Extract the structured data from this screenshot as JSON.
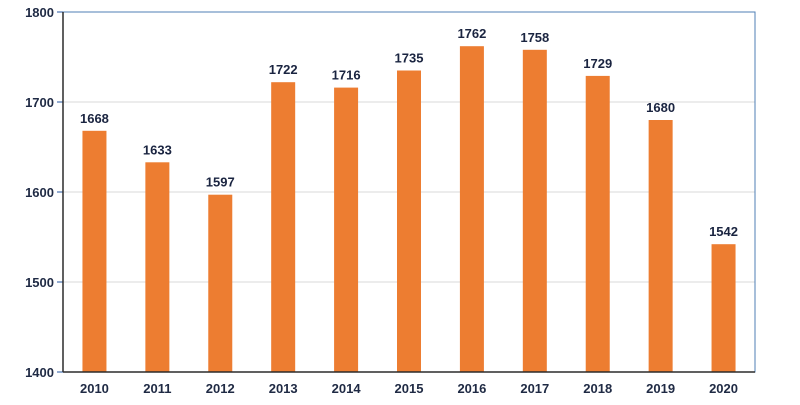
{
  "chart_data": {
    "type": "bar",
    "categories": [
      "2010",
      "2011",
      "2012",
      "2013",
      "2014",
      "2015",
      "2016",
      "2017",
      "2018",
      "2019",
      "2020"
    ],
    "series": [
      {
        "values": [
          1668,
          1633,
          1597,
          1722,
          1716,
          1735,
          1762,
          1758,
          1729,
          1680,
          1542
        ],
        "color": "#ed7d31"
      }
    ],
    "data_labels": [
      "1668",
      "1633",
      "1597",
      "1722",
      "1716",
      "1735",
      "1762",
      "1758",
      "1729",
      "1680",
      "1542"
    ],
    "y_ticks": [
      "1400",
      "1500",
      "1600",
      "1700",
      "1800"
    ],
    "ylim": [
      1400,
      1800
    ],
    "title": "",
    "xlabel": "",
    "ylabel": "",
    "grid": true,
    "legend": "none",
    "colors": {
      "bar": "#ed7d31",
      "frame": "#4f7fb5",
      "grid": "#d9d9d9",
      "text": "#1f2a44"
    }
  }
}
